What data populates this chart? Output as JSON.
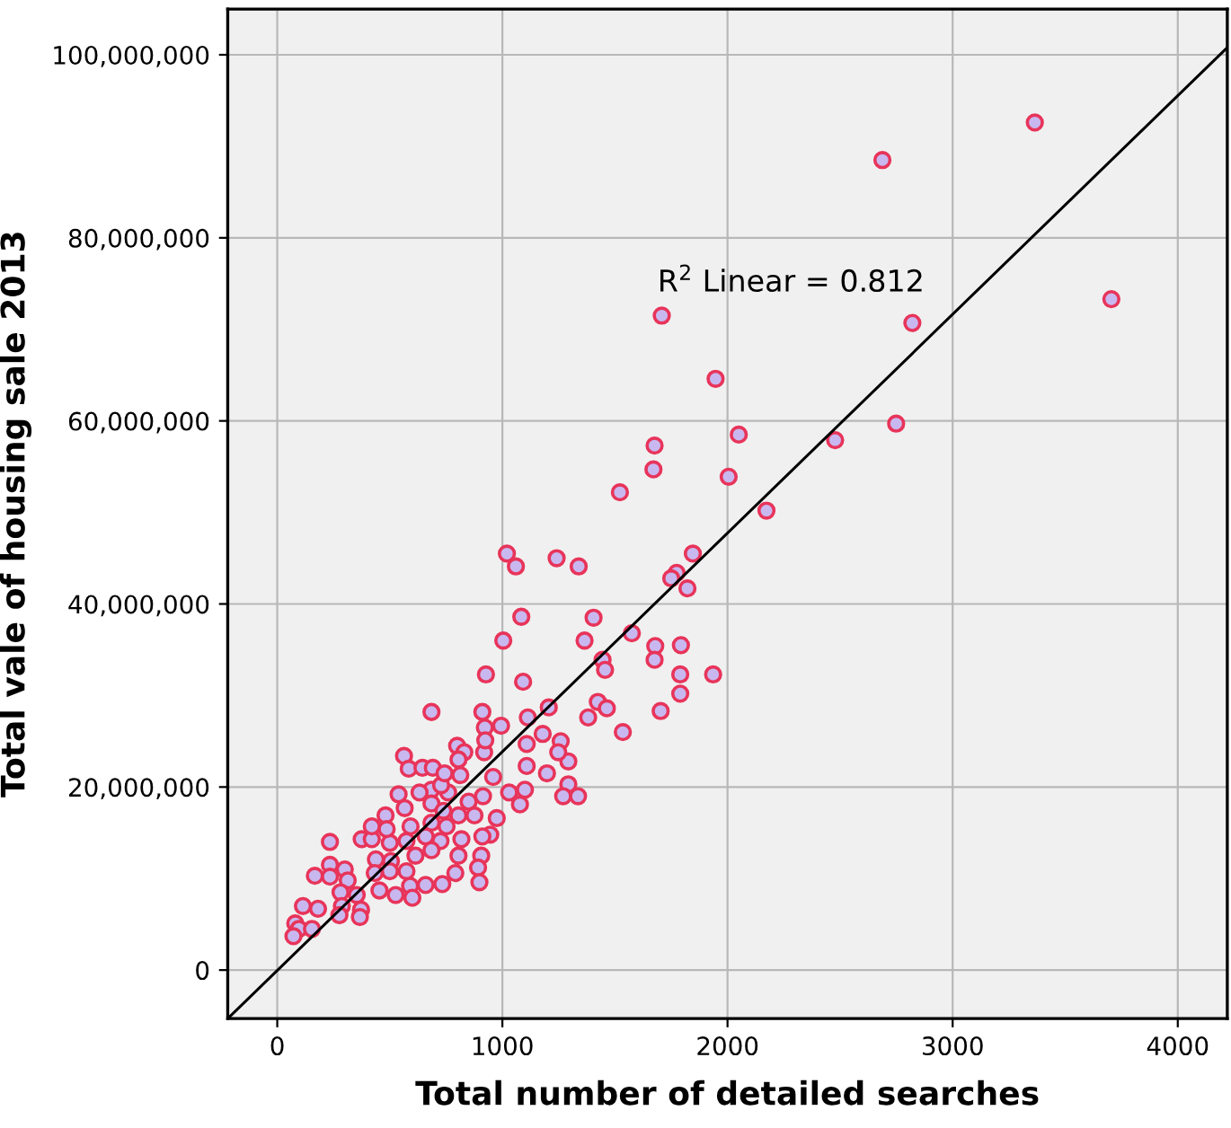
{
  "chart_data": {
    "type": "scatter",
    "xlabel": "Total number of detailed searches",
    "ylabel": "Total vale of housing sale 2013",
    "annotations": [
      "R$^{2}$ Linear = 0.812"
    ],
    "xlim": [
      -220,
      4220
    ],
    "xticks": [
      0,
      1000,
      2000,
      3000,
      4000
    ],
    "ylim": [
      -5300000,
      105000000
    ],
    "yticks": [
      {
        "value": 0,
        "label": "0"
      },
      {
        "value": 20000000,
        "label": "20,000,000"
      },
      {
        "value": 40000000,
        "label": "40,000,000"
      },
      {
        "value": 60000000,
        "label": "60,000,000"
      },
      {
        "value": 80000000,
        "label": "80,000,000"
      },
      {
        "value": 100000000,
        "label": "100,000,000"
      }
    ],
    "grid": true,
    "series": [
      {
        "marker": "circle",
        "color": "#e8345a",
        "x": [
          3365,
          2688,
          3705,
          1708,
          2821,
          1947,
          1676,
          1671,
          2050,
          2749,
          2005,
          2478,
          1522,
          2173,
          1020,
          1060,
          1241,
          1339,
          1846,
          1774,
          1750,
          1822,
          1084,
          1405,
          1004,
          1365,
          1575,
          1679,
          1793,
          1445,
          1456,
          1676,
          1790,
          1936,
          927,
          1092,
          1790,
          685,
          911,
          1206,
          1424,
          1464,
          1703,
          922,
          994,
          1113,
          1381,
          1179,
          1535,
          563,
          584,
          645,
          691,
          799,
          831,
          805,
          919,
          813,
          924,
          1108,
          1259,
          1293,
          1198,
          1108,
          959,
          1293,
          1270,
          1100,
          1030,
          1078,
          975,
          946,
          914,
          850,
          759,
          685,
          632,
          539,
          728,
          743,
          685,
          566,
          481,
          805,
          876,
          738,
          592,
          685,
          752,
          574,
          659,
          725,
          818,
          911,
          234,
          375,
          420,
          500,
          438,
          505,
          614,
          685,
          805,
          906,
          892,
          791,
          898,
          733,
          659,
          590,
          574,
          500,
          433,
          300,
          234,
          167,
          234,
          313,
          281,
          353,
          454,
          526,
          600,
          114,
          181,
          287,
          372,
          367,
          80,
          96,
          154,
          276,
          486,
          420,
          1336,
          1248,
          72
        ],
        "values": [
          92600000,
          88500000,
          73300000,
          71500000,
          70700000,
          64600000,
          57300000,
          54700000,
          58500000,
          59700000,
          53900000,
          57900000,
          52200000,
          50200000,
          45500000,
          44100000,
          45000000,
          44100000,
          45500000,
          43400000,
          42800000,
          41700000,
          38600000,
          38500000,
          36000000,
          36000000,
          36800000,
          35400000,
          35500000,
          33900000,
          32800000,
          33900000,
          32300000,
          32300000,
          32300000,
          31500000,
          30200000,
          28200000,
          28200000,
          28700000,
          29300000,
          28600000,
          28300000,
          26500000,
          26700000,
          27600000,
          27600000,
          25800000,
          26000000,
          23400000,
          22000000,
          22100000,
          22100000,
          24500000,
          23800000,
          23000000,
          23800000,
          21300000,
          25100000,
          24700000,
          25000000,
          22800000,
          21500000,
          22300000,
          21100000,
          20300000,
          19000000,
          19700000,
          19400000,
          18100000,
          16600000,
          14800000,
          19000000,
          18400000,
          19400000,
          19700000,
          19400000,
          19200000,
          20200000,
          21500000,
          18200000,
          17700000,
          16900000,
          16900000,
          16900000,
          17400000,
          15700000,
          16100000,
          15700000,
          14100000,
          14600000,
          14100000,
          14300000,
          14600000,
          14000000,
          14300000,
          14300000,
          13900000,
          12100000,
          11900000,
          12500000,
          13100000,
          12500000,
          12500000,
          11200000,
          10600000,
          9600000,
          9400000,
          9300000,
          9200000,
          10800000,
          10800000,
          10600000,
          11000000,
          11500000,
          10300000,
          10200000,
          9800000,
          8500000,
          8200000,
          8700000,
          8200000,
          7900000,
          7000000,
          6700000,
          7000000,
          6600000,
          5800000,
          5100000,
          4500000,
          4500000,
          6000000,
          15400000,
          15700000,
          19000000,
          23800000,
          3700000
        ]
      },
      {
        "type": "line",
        "color": "#000000",
        "x": [
          -220,
          4220
        ],
        "values": [
          -5300000,
          100800000
        ]
      }
    ]
  }
}
